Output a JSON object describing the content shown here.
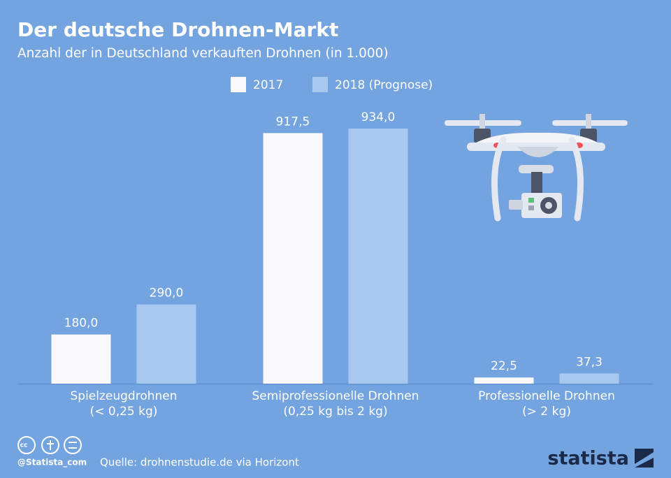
{
  "chart_data": {
    "type": "bar",
    "title": "Der deutsche Drohnen-Markt",
    "subtitle": "Anzahl der in Deutschland verkauften Drohnen (in 1.000)",
    "categories": [
      [
        "Spielzeugdrohnen",
        "(< 0,25 kg)"
      ],
      [
        "Semiprofessionelle Drohnen",
        "(0,25 kg bis 2 kg)"
      ],
      [
        "Professionelle Drohnen",
        "(> 2 kg)"
      ]
    ],
    "series": [
      {
        "name": "2017",
        "color": "#f9f9fb",
        "values": [
          180,
          917.5,
          22.5
        ],
        "value_labels": [
          "180,0",
          "917,5",
          "22,5"
        ]
      },
      {
        "name": "2018 (Prognose)",
        "color": "#a9c8f0",
        "values": [
          290,
          934,
          37.3
        ],
        "value_labels": [
          "290,0",
          "934,0",
          "37,3"
        ]
      }
    ],
    "credit": "@Statista_com",
    "source": "Quelle: drohnenstudie.de via Horizont",
    "brand": "statista"
  }
}
